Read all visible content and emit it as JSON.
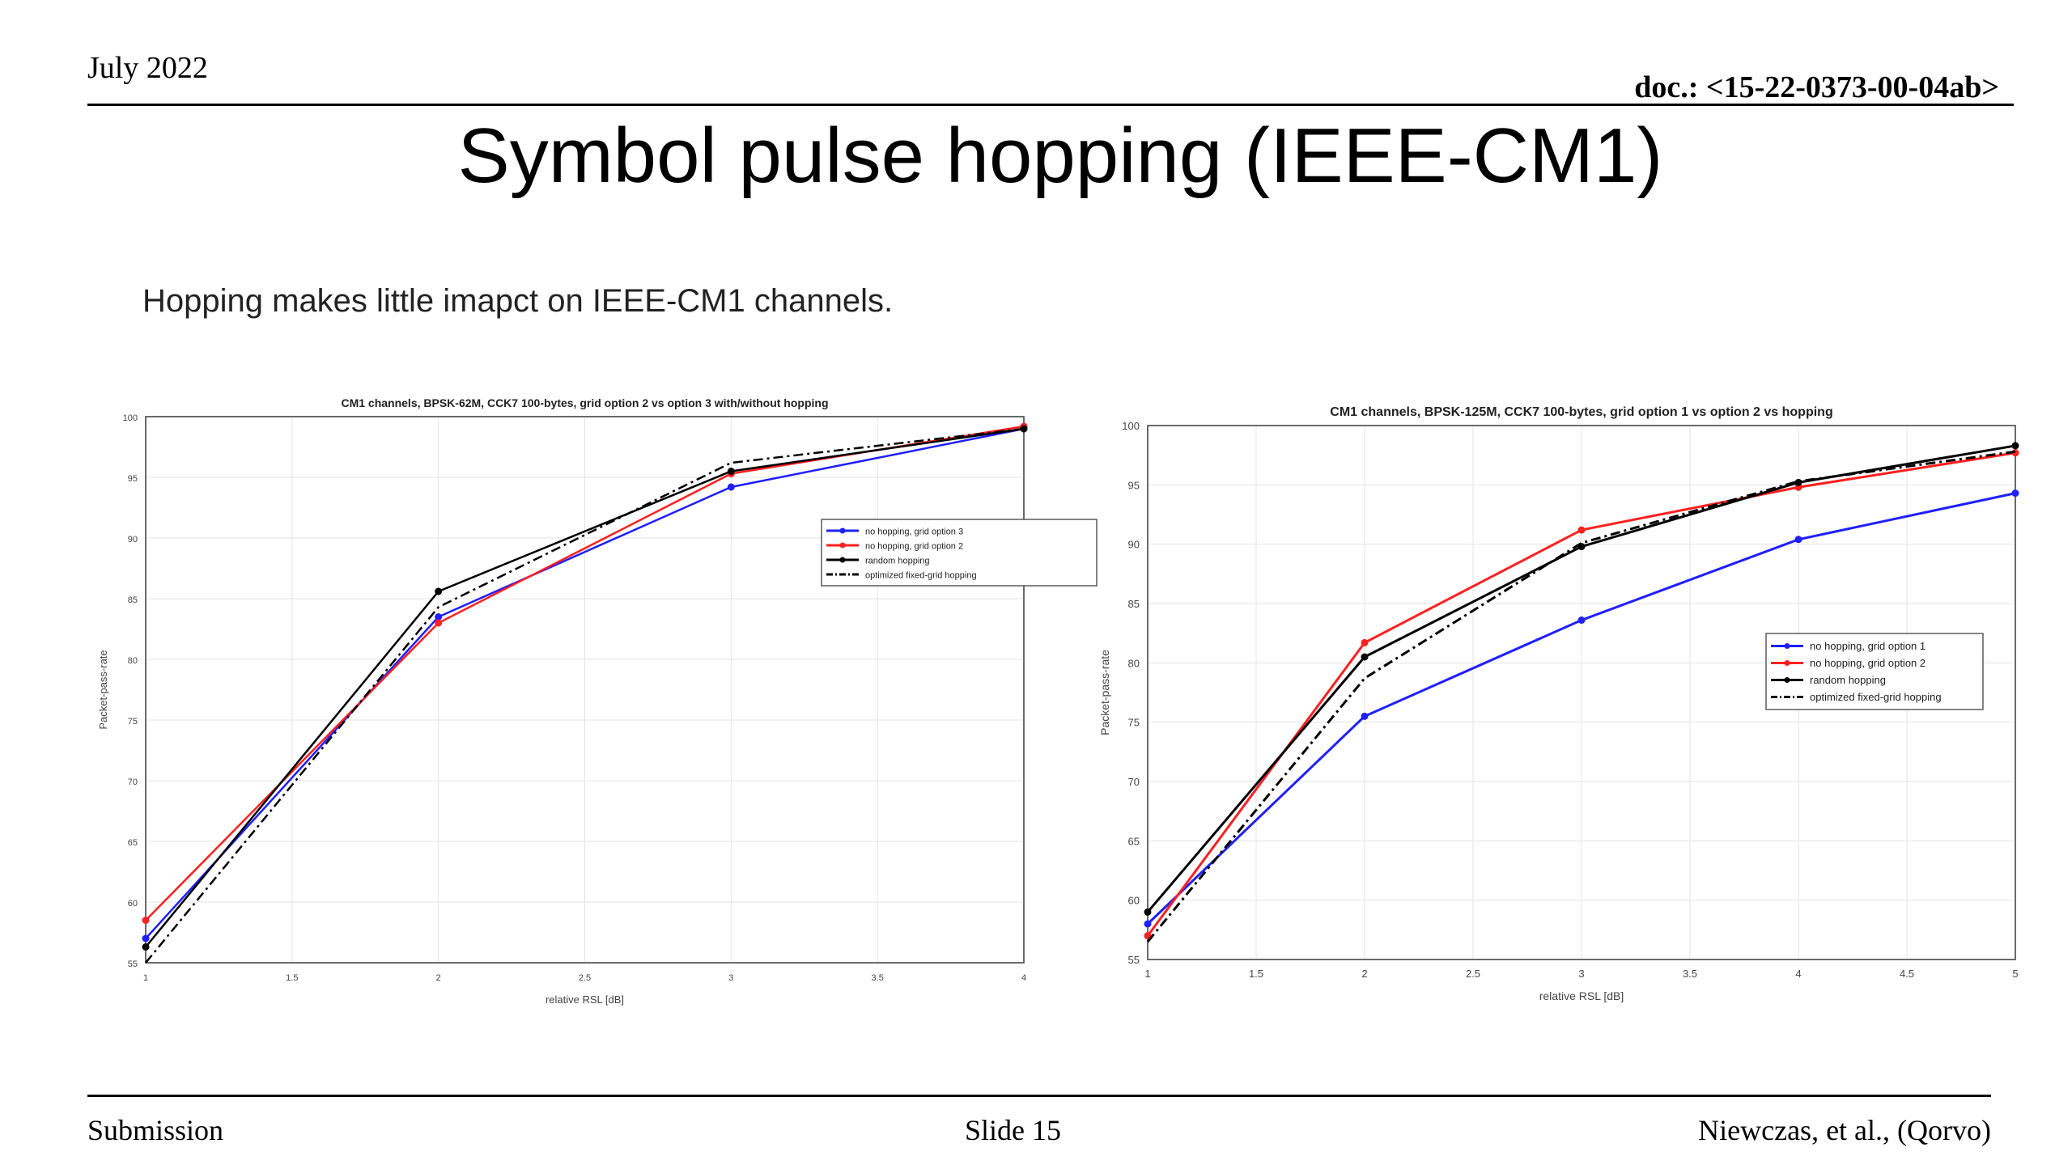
{
  "header": {
    "date": "July 2022",
    "doc_id": "doc.: <15-22-0373-00-04ab>"
  },
  "title": "Symbol pulse hopping (IEEE-CM1)",
  "subtitle": "Hopping makes little imapct on IEEE-CM1 channels.",
  "footer": {
    "left": "Submission",
    "center": "Slide 15",
    "right": "Niewczas, et al., (Qorvo)"
  },
  "chart_data": [
    {
      "type": "line",
      "title": "CM1 channels, BPSK-62M, CCK7 100-bytes, grid option 2 vs option 3 with/without hopping",
      "xlabel": "relative RSL [dB]",
      "ylabel": "Packet-pass-rate",
      "xlim": [
        1,
        4
      ],
      "ylim": [
        55,
        100
      ],
      "xticks": [
        1,
        1.5,
        2,
        2.5,
        3,
        3.5,
        4
      ],
      "yticks": [
        55,
        60,
        65,
        70,
        75,
        80,
        85,
        90,
        95,
        100
      ],
      "grid": true,
      "legend_position": "right",
      "x": [
        1,
        2,
        3,
        4
      ],
      "series": [
        {
          "name": "no hopping, grid option 3",
          "color": "#1f1fff",
          "style": "solid",
          "marker": true,
          "values": [
            57,
            83.5,
            94.2,
            99
          ]
        },
        {
          "name": "no hopping, grid option 2",
          "color": "#ff2020",
          "style": "solid",
          "marker": true,
          "values": [
            58.5,
            83,
            95.3,
            99.2
          ]
        },
        {
          "name": "random hopping",
          "color": "#000000",
          "style": "solid",
          "marker": true,
          "values": [
            56.3,
            85.6,
            95.5,
            99
          ]
        },
        {
          "name": "optimized fixed-grid hopping",
          "color": "#000000",
          "style": "dashdot",
          "marker": false,
          "values": [
            55,
            84.3,
            96.2,
            99
          ]
        }
      ]
    },
    {
      "type": "line",
      "title": "CM1 channels, BPSK-125M, CCK7 100-bytes, grid option 1 vs option 2 vs hopping",
      "xlabel": "relative RSL [dB]",
      "ylabel": "Packet-pass-rate",
      "xlim": [
        1,
        5
      ],
      "ylim": [
        55,
        100
      ],
      "xticks": [
        1,
        1.5,
        2,
        2.5,
        3,
        3.5,
        4,
        4.5,
        5
      ],
      "yticks": [
        55,
        60,
        65,
        70,
        75,
        80,
        85,
        90,
        95,
        100
      ],
      "grid": true,
      "legend_position": "right",
      "x": [
        1,
        2,
        3,
        4,
        5
      ],
      "series": [
        {
          "name": "no hopping, grid option 1",
          "color": "#1f1fff",
          "style": "solid",
          "marker": true,
          "values": [
            58,
            75.5,
            83.6,
            90.4,
            94.3
          ]
        },
        {
          "name": "no hopping, grid option 2",
          "color": "#ff2020",
          "style": "solid",
          "marker": true,
          "values": [
            57,
            81.7,
            91.2,
            94.8,
            97.7
          ]
        },
        {
          "name": "random hopping",
          "color": "#000000",
          "style": "solid",
          "marker": true,
          "values": [
            59,
            80.5,
            89.8,
            95.2,
            98.3
          ]
        },
        {
          "name": "optimized fixed-grid hopping",
          "color": "#000000",
          "style": "dashdot",
          "marker": false,
          "values": [
            56.5,
            78.7,
            90.1,
            95.3,
            97.8
          ]
        }
      ]
    }
  ]
}
